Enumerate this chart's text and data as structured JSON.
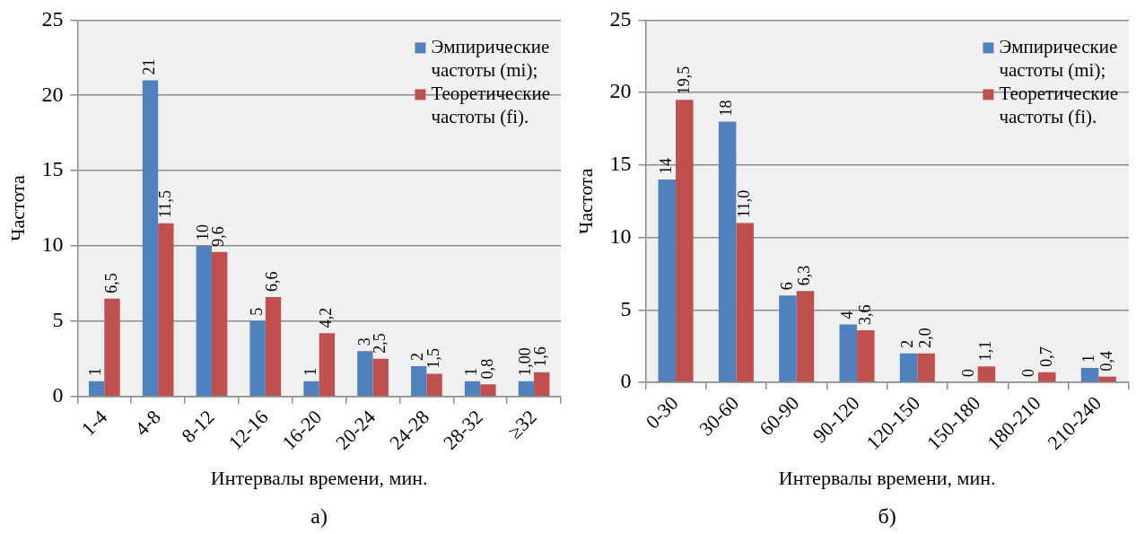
{
  "chart_data": [
    {
      "type": "bar",
      "xlabel": "Интервалы времени, мин.",
      "ylabel": "Частота",
      "annotations": [
        "а)"
      ],
      "categories": [
        "1-4",
        "4-8",
        "8-12",
        "12-16",
        "16-20",
        "20-24",
        "24-28",
        "28-32",
        "≥32"
      ],
      "series": [
        {
          "name": "Эмпирические частоты (mi);",
          "color": "#4f81bd",
          "values": [
            1,
            21,
            10,
            5,
            1,
            3,
            2,
            1,
            1
          ],
          "value_labels": [
            "1",
            "21",
            "10",
            "5",
            "1",
            "3",
            "2",
            "1",
            "1,00"
          ]
        },
        {
          "name": "Теоретические частоты (fi).",
          "color": "#c0504d",
          "values": [
            6.5,
            11.5,
            9.6,
            6.6,
            4.2,
            2.5,
            1.5,
            0.8,
            1.6
          ],
          "value_labels": [
            "6,5",
            "11,5",
            "9,6",
            "6,6",
            "4,2",
            "2,5",
            "1,5",
            "0,8",
            "1,6"
          ]
        }
      ],
      "ylim": [
        0,
        25
      ],
      "yticks": [
        0,
        5,
        10,
        15,
        20,
        25
      ],
      "grid": "y",
      "legend": "top right"
    },
    {
      "type": "bar",
      "xlabel": "Интервалы времени, мин.",
      "ylabel": "Частота",
      "annotations": [
        "б)"
      ],
      "categories": [
        "0-30",
        "30-60",
        "60-90",
        "90-120",
        "120-150",
        "150-180",
        "180-210",
        "210-240"
      ],
      "series": [
        {
          "name": "Эмпирические частоты (mi);",
          "color": "#4f81bd",
          "values": [
            14,
            18,
            6,
            4,
            2,
            0,
            0,
            1
          ],
          "value_labels": [
            "14",
            "18",
            "6",
            "4",
            "2",
            "0",
            "0",
            "1"
          ]
        },
        {
          "name": "Теоретические частоты (fi).",
          "color": "#c0504d",
          "values": [
            19.5,
            11.0,
            6.3,
            3.6,
            2.0,
            1.1,
            0.7,
            0.4
          ],
          "value_labels": [
            "19,5",
            "11,0",
            "6,3",
            "3,6",
            "2,0",
            "1,1",
            "0,7",
            "0,4"
          ]
        }
      ],
      "ylim": [
        0,
        25
      ],
      "yticks": [
        0,
        5,
        10,
        15,
        20,
        25
      ],
      "grid": "y",
      "legend": "top right"
    }
  ]
}
